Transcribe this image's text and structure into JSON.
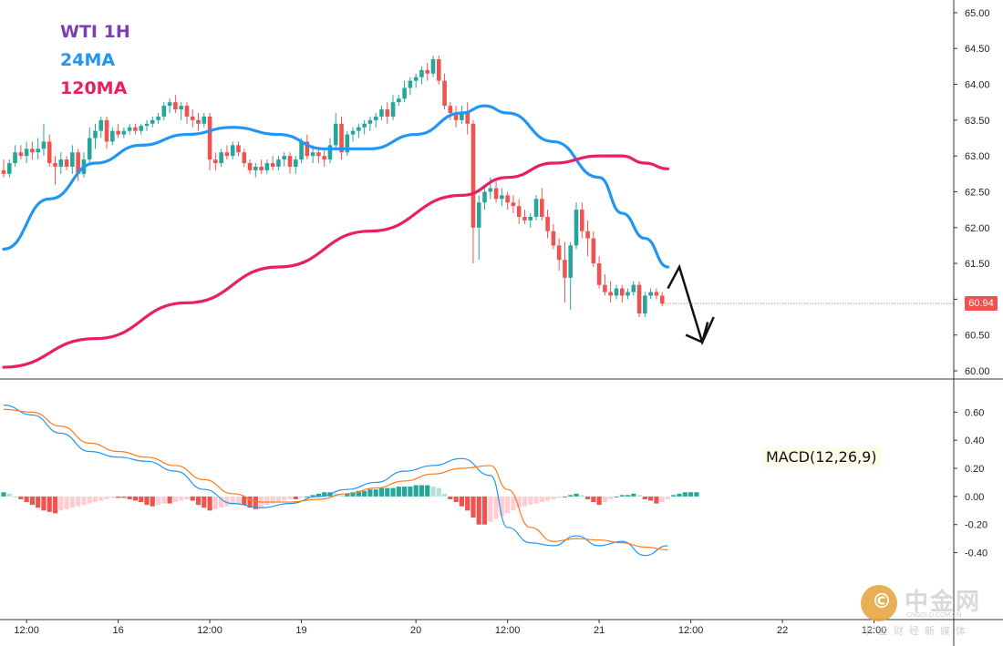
{
  "legend": {
    "symbol_label": "WTI 1H",
    "ma_short_label": "24MA",
    "ma_long_label": "120MA"
  },
  "macd_label": "MACD(12,26,9)",
  "last_price_label": "60.94",
  "watermark": {
    "title": "中金网",
    "url": "CNGOLD.COM.CN",
    "subtitle": "中金财经新媒体"
  },
  "colors": {
    "up": "#26a69a",
    "down": "#ef5350",
    "ma24": "#2196f3",
    "ma120": "#e91e63",
    "macd_line": "#2196f3",
    "signal_line": "#ff7a1a",
    "hist_pos_strong": "#26a69a",
    "hist_pos_weak": "#b2dfdb",
    "hist_neg_strong": "#ef5350",
    "hist_neg_weak": "#ffcdd2",
    "last_price_bg": "#ef5350"
  },
  "chart_data": [
    {
      "type": "candlestick",
      "title": "WTI 1H",
      "ylim": [
        60.0,
        65.05
      ],
      "y_ticks": [
        "65.00",
        "64.50",
        "64.00",
        "63.50",
        "63.00",
        "62.50",
        "62.00",
        "61.50",
        "61.00",
        "60.50",
        "60.00"
      ],
      "x_labels": [
        {
          "label": "12:00",
          "bar": 4
        },
        {
          "label": "16",
          "bar": 20
        },
        {
          "label": "12:00",
          "bar": 36
        },
        {
          "label": "19",
          "bar": 52
        },
        {
          "label": "20",
          "bar": 72
        },
        {
          "label": "12:00",
          "bar": 88
        },
        {
          "label": "21",
          "bar": 104
        },
        {
          "label": "12:00",
          "bar": 120
        },
        {
          "label": "22",
          "bar": 136
        },
        {
          "label": "12:00",
          "bar": 152
        }
      ],
      "candles": [
        [
          62.8,
          62.95,
          62.7,
          62.75
        ],
        [
          62.75,
          62.95,
          62.7,
          62.9
        ],
        [
          62.9,
          63.15,
          62.85,
          63.05
        ],
        [
          63.05,
          63.15,
          62.95,
          63.0
        ],
        [
          63.0,
          63.2,
          62.9,
          63.1
        ],
        [
          63.1,
          63.2,
          62.95,
          63.05
        ],
        [
          63.05,
          63.25,
          62.95,
          63.1
        ],
        [
          63.1,
          63.45,
          63.0,
          63.2
        ],
        [
          63.2,
          63.3,
          62.85,
          62.9
        ],
        [
          62.9,
          63.0,
          62.6,
          62.85
        ],
        [
          62.85,
          63.05,
          62.75,
          62.95
        ],
        [
          62.95,
          63.0,
          62.8,
          62.85
        ],
        [
          62.85,
          63.15,
          62.75,
          63.05
        ],
        [
          63.05,
          63.1,
          62.65,
          62.75
        ],
        [
          62.75,
          63.05,
          62.7,
          62.95
        ],
        [
          62.95,
          63.4,
          62.9,
          63.25
        ],
        [
          63.25,
          63.45,
          63.1,
          63.35
        ],
        [
          63.35,
          63.55,
          63.25,
          63.5
        ],
        [
          63.5,
          63.55,
          63.1,
          63.2
        ],
        [
          63.2,
          63.4,
          63.15,
          63.35
        ],
        [
          63.35,
          63.45,
          63.25,
          63.3
        ],
        [
          63.3,
          63.4,
          63.25,
          63.35
        ],
        [
          63.35,
          63.45,
          63.3,
          63.4
        ],
        [
          63.4,
          63.45,
          63.3,
          63.35
        ],
        [
          63.35,
          63.45,
          63.3,
          63.42
        ],
        [
          63.42,
          63.5,
          63.35,
          63.45
        ],
        [
          63.45,
          63.55,
          63.4,
          63.5
        ],
        [
          63.5,
          63.6,
          63.45,
          63.55
        ],
        [
          63.55,
          63.75,
          63.5,
          63.7
        ],
        [
          63.7,
          63.8,
          63.6,
          63.75
        ],
        [
          63.75,
          63.85,
          63.6,
          63.65
        ],
        [
          63.65,
          63.75,
          63.5,
          63.7
        ],
        [
          63.7,
          63.75,
          63.45,
          63.55
        ],
        [
          63.55,
          63.65,
          63.4,
          63.5
        ],
        [
          63.5,
          63.6,
          63.35,
          63.45
        ],
        [
          63.45,
          63.6,
          63.4,
          63.55
        ],
        [
          63.55,
          63.6,
          62.8,
          62.95
        ],
        [
          62.95,
          63.05,
          62.8,
          62.9
        ],
        [
          62.9,
          63.1,
          62.85,
          63.05
        ],
        [
          63.05,
          63.15,
          62.95,
          63.0
        ],
        [
          63.0,
          63.2,
          62.95,
          63.15
        ],
        [
          63.15,
          63.2,
          63.0,
          63.05
        ],
        [
          63.05,
          63.1,
          62.85,
          62.9
        ],
        [
          62.9,
          62.95,
          62.75,
          62.8
        ],
        [
          62.8,
          62.9,
          62.7,
          62.85
        ],
        [
          62.85,
          62.95,
          62.75,
          62.8
        ],
        [
          62.8,
          62.95,
          62.75,
          62.9
        ],
        [
          62.9,
          63.0,
          62.8,
          62.85
        ],
        [
          62.85,
          63.0,
          62.8,
          62.95
        ],
        [
          62.95,
          63.05,
          62.85,
          63.0
        ],
        [
          63.0,
          63.05,
          62.75,
          62.85
        ],
        [
          62.85,
          63.0,
          62.75,
          62.95
        ],
        [
          62.95,
          63.25,
          62.9,
          63.2
        ],
        [
          63.2,
          63.3,
          62.95,
          63.0
        ],
        [
          63.0,
          63.15,
          62.9,
          63.05
        ],
        [
          63.05,
          63.1,
          62.9,
          63.0
        ],
        [
          63.0,
          63.1,
          62.85,
          62.95
        ],
        [
          62.95,
          63.25,
          62.9,
          63.15
        ],
        [
          63.15,
          63.6,
          63.1,
          63.45
        ],
        [
          63.45,
          63.55,
          62.95,
          63.05
        ],
        [
          63.05,
          63.35,
          63.0,
          63.3
        ],
        [
          63.3,
          63.4,
          63.2,
          63.35
        ],
        [
          63.35,
          63.45,
          63.25,
          63.4
        ],
        [
          63.4,
          63.5,
          63.3,
          63.45
        ],
        [
          63.45,
          63.55,
          63.35,
          63.5
        ],
        [
          63.5,
          63.6,
          63.4,
          63.55
        ],
        [
          63.55,
          63.7,
          63.5,
          63.65
        ],
        [
          63.65,
          63.75,
          63.45,
          63.55
        ],
        [
          63.55,
          63.85,
          63.5,
          63.75
        ],
        [
          63.75,
          63.85,
          63.7,
          63.8
        ],
        [
          63.8,
          64.05,
          63.75,
          63.95
        ],
        [
          63.95,
          64.1,
          63.85,
          64.05
        ],
        [
          64.05,
          64.15,
          63.95,
          64.1
        ],
        [
          64.1,
          64.25,
          64.0,
          64.2
        ],
        [
          64.2,
          64.3,
          64.05,
          64.15
        ],
        [
          64.15,
          64.4,
          64.1,
          64.35
        ],
        [
          64.35,
          64.4,
          64.0,
          64.05
        ],
        [
          64.05,
          64.15,
          63.65,
          63.7
        ],
        [
          63.7,
          63.75,
          63.5,
          63.6
        ],
        [
          63.6,
          63.7,
          63.4,
          63.5
        ],
        [
          63.5,
          63.7,
          63.45,
          63.6
        ],
        [
          63.6,
          63.75,
          63.3,
          63.45
        ],
        [
          63.45,
          63.5,
          61.5,
          62.0
        ],
        [
          62.0,
          62.45,
          61.55,
          62.35
        ],
        [
          62.35,
          62.6,
          62.25,
          62.5
        ],
        [
          62.5,
          62.7,
          62.4,
          62.55
        ],
        [
          62.55,
          62.65,
          62.35,
          62.4
        ],
        [
          62.4,
          62.55,
          62.3,
          62.45
        ],
        [
          62.45,
          62.5,
          62.25,
          62.35
        ],
        [
          62.35,
          62.45,
          62.2,
          62.3
        ],
        [
          62.3,
          62.4,
          62.05,
          62.15
        ],
        [
          62.15,
          62.25,
          62.05,
          62.1
        ],
        [
          62.1,
          62.2,
          62.0,
          62.15
        ],
        [
          62.15,
          62.45,
          62.1,
          62.4
        ],
        [
          62.4,
          62.55,
          62.1,
          62.15
        ],
        [
          62.15,
          62.25,
          61.85,
          61.95
        ],
        [
          61.95,
          62.05,
          61.7,
          61.75
        ],
        [
          61.75,
          61.85,
          61.4,
          61.55
        ],
        [
          61.55,
          61.8,
          60.95,
          61.3
        ],
        [
          61.3,
          61.8,
          60.85,
          61.75
        ],
        [
          61.75,
          62.35,
          61.7,
          62.25
        ],
        [
          62.25,
          62.35,
          61.85,
          61.95
        ],
        [
          61.95,
          62.1,
          61.6,
          61.85
        ],
        [
          61.85,
          61.95,
          61.45,
          61.5
        ],
        [
          61.5,
          61.6,
          61.15,
          61.2
        ],
        [
          61.2,
          61.35,
          61.05,
          61.1
        ],
        [
          61.1,
          61.25,
          60.95,
          61.05
        ],
        [
          61.05,
          61.2,
          61.0,
          61.15
        ],
        [
          61.15,
          61.2,
          60.95,
          61.05
        ],
        [
          61.05,
          61.15,
          61.0,
          61.1
        ],
        [
          61.1,
          61.25,
          61.05,
          61.2
        ],
        [
          61.2,
          61.25,
          60.75,
          60.8
        ],
        [
          60.8,
          61.1,
          60.75,
          61.05
        ],
        [
          61.05,
          61.15,
          61.0,
          61.1
        ],
        [
          61.1,
          61.15,
          61.0,
          61.05
        ],
        [
          61.05,
          61.1,
          60.9,
          60.94
        ]
      ],
      "series": [
        {
          "name": "24MA",
          "x": [
            0,
            8,
            16,
            24,
            32,
            40,
            48,
            56,
            64,
            72,
            80,
            84,
            88,
            96,
            104,
            108,
            112,
            116
          ],
          "values": [
            61.7,
            62.4,
            62.9,
            63.15,
            63.3,
            63.4,
            63.3,
            63.1,
            63.1,
            63.3,
            63.6,
            63.7,
            63.6,
            63.2,
            62.7,
            62.2,
            61.85,
            61.45
          ]
        },
        {
          "name": "120MA",
          "x": [
            0,
            16,
            32,
            48,
            64,
            80,
            88,
            96,
            104,
            108,
            112,
            116
          ],
          "values": [
            60.05,
            60.45,
            60.95,
            61.45,
            61.95,
            62.45,
            62.7,
            62.9,
            63.0,
            63.0,
            62.9,
            62.82
          ]
        }
      ],
      "annotation": {
        "type": "arrow",
        "points": [
          [
            116,
            61.15
          ],
          [
            118,
            61.45
          ],
          [
            122,
            60.4
          ],
          [
            124,
            60.75
          ]
        ]
      }
    },
    {
      "type": "macd",
      "title": "MACD(12,26,9)",
      "ylim": [
        -0.5,
        0.68
      ],
      "y_ticks": [
        "0.60",
        "0.40",
        "0.20",
        "0.00",
        "-0.20",
        "-0.40"
      ],
      "series": [
        {
          "name": "MACD",
          "x": [
            0,
            5,
            10,
            15,
            20,
            25,
            30,
            35,
            40,
            45,
            50,
            55,
            60,
            65,
            70,
            75,
            80,
            85,
            88,
            92,
            96,
            100,
            104,
            108,
            112,
            116
          ],
          "values": [
            0.65,
            0.58,
            0.45,
            0.32,
            0.28,
            0.25,
            0.18,
            0.05,
            -0.05,
            -0.08,
            -0.05,
            0.0,
            0.05,
            0.1,
            0.18,
            0.22,
            0.27,
            0.15,
            -0.22,
            -0.33,
            -0.35,
            -0.28,
            -0.35,
            -0.32,
            -0.42,
            -0.35
          ]
        },
        {
          "name": "Signal",
          "x": [
            0,
            5,
            10,
            15,
            20,
            25,
            30,
            35,
            40,
            45,
            50,
            55,
            60,
            65,
            70,
            75,
            80,
            85,
            88,
            92,
            96,
            100,
            104,
            108,
            112,
            116
          ],
          "values": [
            0.62,
            0.6,
            0.5,
            0.38,
            0.32,
            0.28,
            0.22,
            0.12,
            0.02,
            -0.04,
            -0.04,
            -0.02,
            0.02,
            0.06,
            0.11,
            0.16,
            0.2,
            0.22,
            0.05,
            -0.22,
            -0.32,
            -0.3,
            -0.31,
            -0.33,
            -0.36,
            -0.38
          ]
        }
      ],
      "histogram": [
        0.03,
        0.02,
        0.0,
        -0.02,
        -0.04,
        -0.06,
        -0.08,
        -0.1,
        -0.11,
        -0.12,
        -0.1,
        -0.09,
        -0.08,
        -0.07,
        -0.06,
        -0.05,
        -0.04,
        -0.03,
        -0.02,
        -0.01,
        -0.01,
        -0.01,
        -0.02,
        -0.03,
        -0.04,
        -0.06,
        -0.07,
        -0.06,
        -0.05,
        -0.05,
        -0.04,
        -0.03,
        -0.02,
        -0.03,
        -0.06,
        -0.08,
        -0.1,
        -0.09,
        -0.08,
        -0.07,
        -0.06,
        -0.05,
        -0.06,
        -0.08,
        -0.09,
        -0.08,
        -0.06,
        -0.05,
        -0.04,
        -0.03,
        -0.02,
        -0.02,
        -0.01,
        0.0,
        0.01,
        0.02,
        0.03,
        0.03,
        0.02,
        0.01,
        0.02,
        0.03,
        0.04,
        0.04,
        0.05,
        0.05,
        0.06,
        0.06,
        0.06,
        0.07,
        0.07,
        0.07,
        0.08,
        0.08,
        0.08,
        0.07,
        0.06,
        0.02,
        -0.02,
        -0.04,
        -0.07,
        -0.1,
        -0.15,
        -0.2,
        -0.2,
        -0.18,
        -0.16,
        -0.14,
        -0.12,
        -0.1,
        -0.08,
        -0.07,
        -0.06,
        -0.05,
        -0.04,
        -0.03,
        -0.02,
        -0.01,
        0.0,
        0.01,
        0.02,
        0.01,
        -0.02,
        -0.04,
        -0.06,
        -0.04,
        -0.02,
        0.0,
        0.01,
        0.01,
        0.02,
        0.01,
        -0.02,
        -0.03,
        -0.05,
        -0.04,
        -0.02,
        0.01,
        0.02,
        0.03,
        0.03,
        0.03
      ]
    }
  ]
}
